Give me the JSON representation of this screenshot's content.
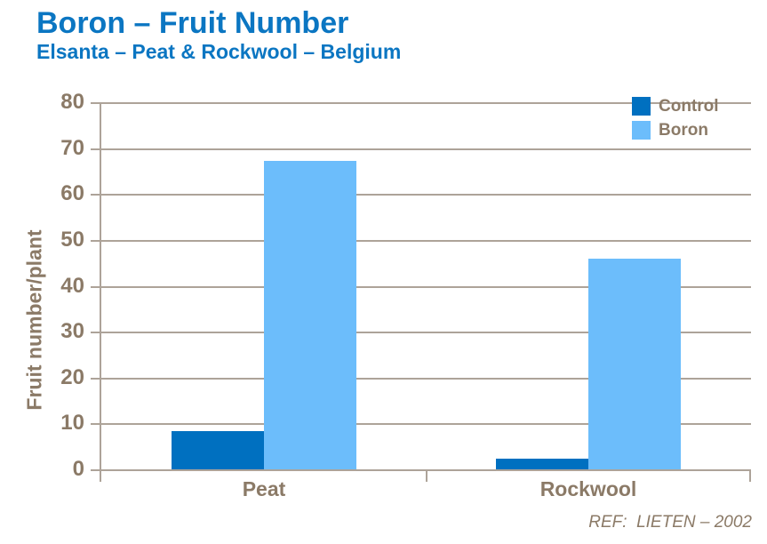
{
  "header": {
    "title": "Boron – Fruit Number",
    "subtitle": "Elsanta – Peat & Rockwool – Belgium"
  },
  "footer": {
    "reference": "REF:  LIETEN – 2002"
  },
  "colors": {
    "heading_blue": "#0B76C2",
    "control_bar": "#0070C0",
    "boron_bar": "#6CBDFB",
    "axis_text_brown": "#8B7A67",
    "grid_line": "#ADA399",
    "background": "#FFFFFF"
  },
  "chart_data": {
    "type": "bar",
    "title": "Boron – Fruit Number",
    "subtitle": "Elsanta – Peat & Rockwool – Belgium",
    "categories": [
      "Peat",
      "Rockwool"
    ],
    "series": [
      {
        "name": "Control",
        "color": "#0070C0",
        "values": [
          8.4,
          2.3
        ]
      },
      {
        "name": "Boron",
        "color": "#6CBDFB",
        "values": [
          67.3,
          46
        ]
      }
    ],
    "xlabel": "",
    "ylabel": "Fruit number/plant",
    "ylim": [
      0,
      80
    ],
    "yticks": [
      0,
      10,
      20,
      30,
      40,
      50,
      60,
      70,
      80
    ],
    "grid": true,
    "legend_position": "top-right",
    "annotation": "REF:  LIETEN – 2002"
  }
}
